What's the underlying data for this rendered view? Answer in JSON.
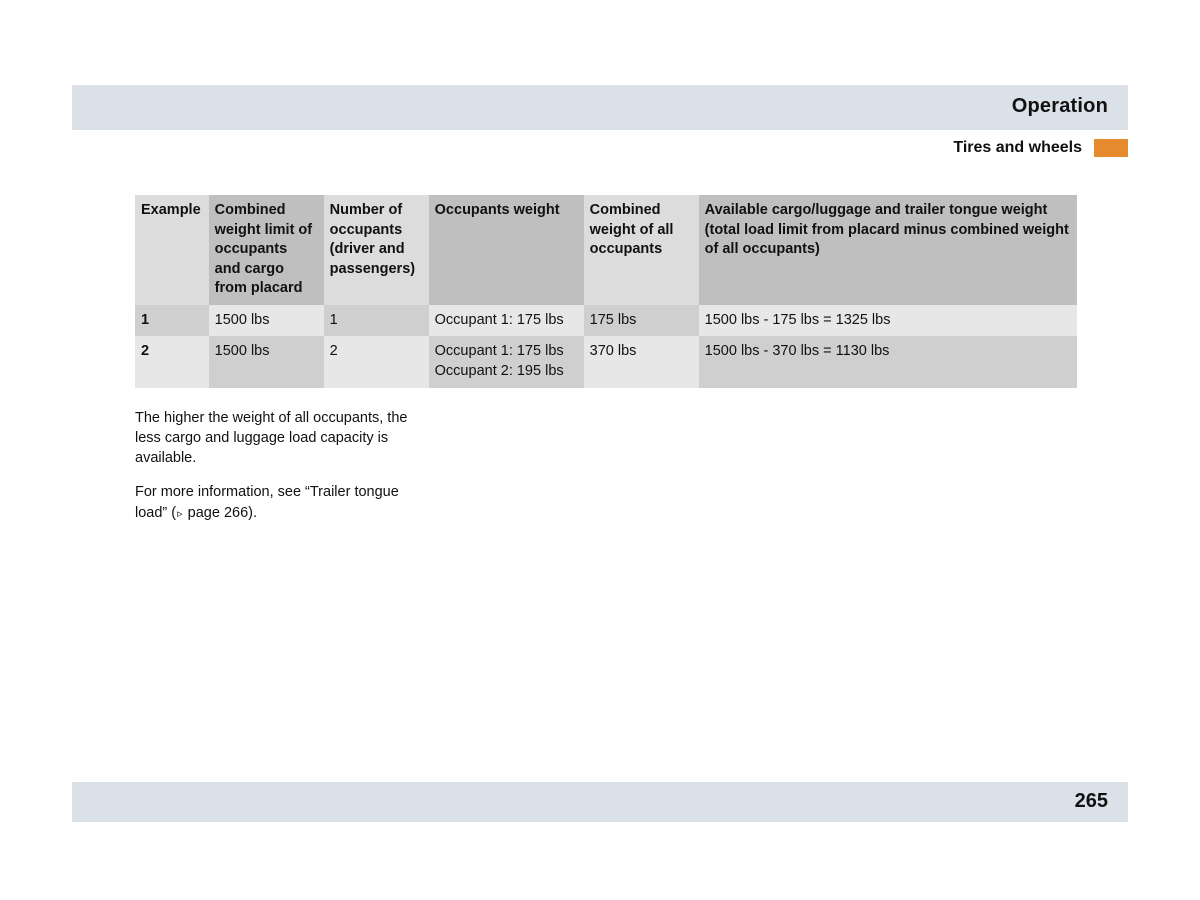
{
  "colors": {
    "band": "#dbe1e8",
    "accent": "#e68a2e",
    "hdr_light": "#dcdcdc",
    "hdr_dark": "#bfbfbf",
    "row_light": "#e7e7e7",
    "row_dark": "#cfcfcf",
    "text": "#111111",
    "page_bg": "#ffffff"
  },
  "header": {
    "title": "Operation",
    "subtitle": "Tires and wheels"
  },
  "table": {
    "columns": [
      "Example",
      "Combined weight limit of occupants and cargo from placard",
      "Number of occupants (driver and passengers)",
      "Occupants weight",
      "Combined weight of all occupants",
      "Available cargo/luggage and trailer tongue weight (total load limit from placard minus combined weight of all occupants)"
    ],
    "rows": [
      {
        "example": "1",
        "limit": "1500 lbs",
        "num": "1",
        "occ_weight": "Occupant 1: 175 lbs",
        "combined": "175 lbs",
        "available": "1500 lbs - 175 lbs = 1325 lbs"
      },
      {
        "example": "2",
        "limit": "1500 lbs",
        "num": "2",
        "occ_weight": "Occupant 1: 175 lbs\nOccupant 2: 195 lbs",
        "combined": "370 lbs",
        "available": "1500 lbs - 370 lbs = 1130 lbs"
      }
    ]
  },
  "paragraphs": {
    "p1": "The higher the weight of all occupants, the less cargo and luggage load capacity is available.",
    "p2_pre": "For more information, see “Trailer tongue load” (",
    "p2_page": "page 266",
    "p2_post": ")."
  },
  "footer": {
    "page": "265"
  }
}
